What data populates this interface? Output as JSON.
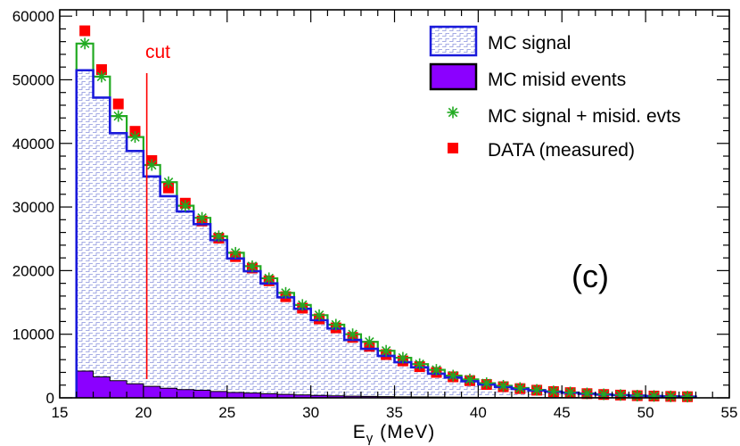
{
  "chart_data": {
    "type": "bar",
    "xlabel": "Eγ (MeV)",
    "xlabel_main": "E",
    "xlabel_sub": "γ",
    "xlabel_unit": " (MeV)",
    "ylabel": "",
    "xlim": [
      15,
      55
    ],
    "ylim": [
      0,
      61000
    ],
    "x_ticks": [
      15,
      20,
      25,
      30,
      35,
      40,
      45,
      50,
      55
    ],
    "y_ticks": [
      0,
      10000,
      20000,
      30000,
      40000,
      50000,
      60000
    ],
    "bin_edges": [
      16,
      17,
      18,
      19,
      20,
      21,
      22,
      23,
      24,
      25,
      26,
      27,
      28,
      29,
      30,
      31,
      32,
      33,
      34,
      35,
      36,
      37,
      38,
      39,
      40,
      41,
      42,
      43,
      44,
      45,
      46,
      47,
      48,
      49,
      50,
      51,
      52,
      53
    ],
    "bin_centers": [
      16.5,
      17.5,
      18.5,
      19.5,
      20.5,
      21.5,
      22.5,
      23.5,
      24.5,
      25.5,
      26.5,
      27.5,
      28.5,
      29.5,
      30.5,
      31.5,
      32.5,
      33.5,
      34.5,
      35.5,
      36.5,
      37.5,
      38.5,
      39.5,
      40.5,
      41.5,
      42.5,
      43.5,
      44.5,
      45.5,
      46.5,
      47.5,
      48.5,
      49.5,
      50.5,
      51.5,
      52.5
    ],
    "series": [
      {
        "name": "MC signal",
        "style": "hatched-step",
        "color": "#1a1adb",
        "values": [
          51500,
          47200,
          41600,
          38800,
          34800,
          31700,
          29300,
          27300,
          24800,
          21900,
          19900,
          18000,
          15800,
          14000,
          12200,
          10900,
          9100,
          7700,
          6600,
          5600,
          4800,
          3800,
          3200,
          2600,
          2100,
          1700,
          1400,
          1150,
          950,
          800,
          650,
          520,
          420,
          340,
          280,
          220,
          180
        ]
      },
      {
        "name": "MC misid events",
        "style": "filled",
        "color": "#8b00ff",
        "values": [
          4200,
          3300,
          2700,
          2200,
          1800,
          1500,
          1300,
          1200,
          1000,
          850,
          750,
          650,
          550,
          450,
          380,
          320,
          270,
          230,
          190,
          160,
          140,
          120,
          100,
          85,
          70,
          60,
          50,
          42,
          35,
          30,
          25,
          20,
          17,
          14,
          12,
          10,
          8
        ]
      },
      {
        "name": "MC signal + misid. evts",
        "style": "star-markers-step",
        "color": "#22aa22",
        "values": [
          55700,
          50500,
          44300,
          41000,
          36600,
          33900,
          30200,
          28300,
          25400,
          22800,
          20700,
          18800,
          16500,
          14600,
          13000,
          11500,
          10000,
          8800,
          7400,
          6300,
          5300,
          4400,
          3500,
          2900,
          2300,
          1900,
          1550,
          1250,
          1020,
          850,
          690,
          550,
          440,
          350,
          290,
          230,
          190
        ]
      },
      {
        "name": "DATA (measured)",
        "style": "square-markers",
        "color": "#ff0000",
        "values": [
          57700,
          51600,
          46200,
          41900,
          37300,
          33000,
          30600,
          27800,
          25100,
          22200,
          20400,
          18400,
          15900,
          14100,
          12400,
          11000,
          9500,
          8100,
          6800,
          5800,
          4900,
          4000,
          3300,
          2700,
          2100,
          1750,
          1450,
          1200,
          980,
          820,
          660,
          530,
          430,
          340,
          280,
          225,
          180
        ]
      }
    ],
    "annotations": [
      {
        "text": "cut",
        "x": 20.2,
        "color": "#ff0000"
      },
      {
        "text": "(c)"
      }
    ],
    "legend": {
      "placement": "top-right",
      "entries": [
        "MC signal",
        "MC misid events",
        "MC signal + misid. evts",
        "DATA (measured)"
      ]
    }
  }
}
